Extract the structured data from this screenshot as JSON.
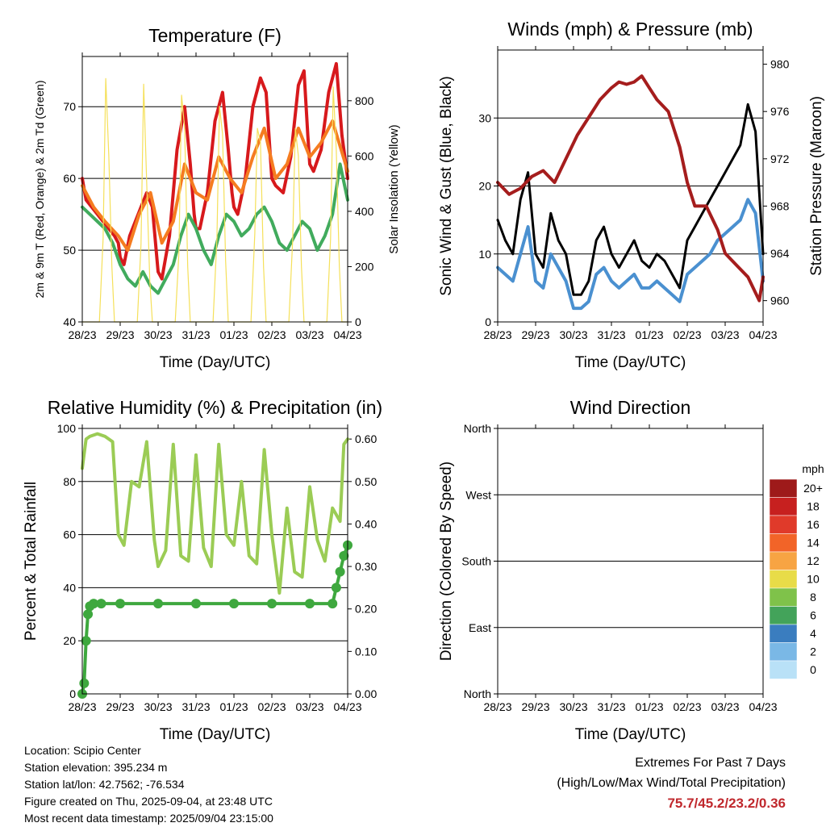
{
  "chart_data": [
    {
      "type": "line",
      "title": "Temperature (F)",
      "xlabel": "Time (Day/UTC)",
      "ylabel": "2m & 9m T (Red, Orange) & 2m Td (Green)",
      "ylabel_right": "Solar Insolation (Yellow)",
      "x_ticks": [
        "28/23",
        "29/23",
        "30/23",
        "31/23",
        "01/23",
        "02/23",
        "03/23",
        "04/23"
      ],
      "ylim": [
        40,
        77
      ],
      "y_ticks": [
        40,
        50,
        60,
        70
      ],
      "ylim_right": [
        0,
        960
      ],
      "y_ticks_right": [
        0,
        200,
        400,
        600,
        800
      ],
      "grid": true,
      "series": [
        {
          "color": "#d7191c",
          "x": [
            0,
            0.1,
            0.25,
            0.4,
            0.55,
            0.7,
            0.85,
            0.95,
            1.0,
            1.1,
            1.25,
            1.4,
            1.55,
            1.7,
            1.85,
            1.95,
            2.0,
            2.1,
            2.3,
            2.5,
            2.7,
            2.85,
            2.95,
            3.0,
            3.1,
            3.3,
            3.5,
            3.7,
            3.85,
            3.95,
            4.0,
            4.1,
            4.3,
            4.5,
            4.7,
            4.85,
            4.95,
            5.0,
            5.1,
            5.3,
            5.5,
            5.7,
            5.85,
            5.95,
            6.0,
            6.1,
            6.3,
            6.5,
            6.7,
            6.85,
            6.95,
            7.0
          ],
          "y": [
            60,
            57,
            56,
            55,
            54,
            53,
            52,
            51,
            49,
            48,
            52,
            54,
            56,
            58,
            56,
            50,
            47,
            46,
            52,
            64,
            70,
            62,
            55,
            53,
            53,
            58,
            68,
            72,
            64,
            58,
            56,
            55,
            60,
            70,
            74,
            72,
            64,
            60,
            59,
            58,
            63,
            73,
            75,
            66,
            62,
            61,
            64,
            72,
            76,
            66,
            62,
            60
          ]
        },
        {
          "color": "#f57c20",
          "x": [
            0,
            0.3,
            0.6,
            0.95,
            1.2,
            1.5,
            1.8,
            2.1,
            2.4,
            2.7,
            3.0,
            3.3,
            3.6,
            3.9,
            4.2,
            4.5,
            4.8,
            5.1,
            5.4,
            5.7,
            6.0,
            6.3,
            6.6,
            7.0
          ],
          "y": [
            59,
            56,
            54,
            52,
            50,
            55,
            58,
            51,
            54,
            62,
            58,
            57,
            63,
            60,
            58,
            63,
            67,
            60,
            62,
            67,
            63,
            65,
            68,
            61
          ]
        },
        {
          "color": "#41ab5d",
          "x": [
            0,
            0.2,
            0.4,
            0.6,
            0.8,
            1.0,
            1.2,
            1.4,
            1.6,
            1.8,
            2.0,
            2.2,
            2.4,
            2.6,
            2.8,
            3.0,
            3.2,
            3.4,
            3.6,
            3.8,
            4.0,
            4.2,
            4.4,
            4.6,
            4.8,
            5.0,
            5.2,
            5.4,
            5.6,
            5.8,
            6.0,
            6.2,
            6.4,
            6.6,
            6.8,
            7.0
          ],
          "y": [
            56,
            55,
            54,
            53,
            51,
            48,
            46,
            45,
            47,
            45,
            44,
            46,
            48,
            52,
            55,
            53,
            50,
            48,
            52,
            55,
            54,
            52,
            53,
            55,
            56,
            54,
            51,
            50,
            52,
            54,
            53,
            50,
            52,
            55,
            62,
            57
          ]
        },
        {
          "color": "#f5e05a",
          "x": [
            0,
            0.45,
            0.55,
            0.62,
            0.7,
            0.78,
            0.85,
            1.45,
            1.55,
            1.62,
            1.7,
            1.78,
            1.85,
            2.45,
            2.55,
            2.62,
            2.7,
            2.78,
            2.85,
            3.45,
            3.55,
            3.62,
            3.7,
            3.78,
            3.85,
            4.45,
            4.55,
            4.62,
            4.7,
            4.78,
            4.85,
            5.45,
            5.55,
            5.62,
            5.7,
            5.78,
            5.85,
            6.45,
            6.55,
            6.62,
            6.7,
            6.78,
            6.85,
            7.0
          ],
          "y": [
            0,
            0,
            300,
            880,
            600,
            200,
            0,
            0,
            280,
            860,
            500,
            150,
            0,
            0,
            250,
            820,
            700,
            200,
            0,
            0,
            300,
            780,
            680,
            220,
            0,
            0,
            320,
            700,
            650,
            200,
            0,
            0,
            300,
            700,
            600,
            200,
            0,
            0,
            300,
            850,
            620,
            200,
            0,
            0
          ]
        }
      ]
    },
    {
      "type": "line",
      "title": "Winds (mph) & Pressure (mb)",
      "xlabel": "Time (Day/UTC)",
      "ylabel": "Sonic Wind & Gust (Blue, Black)",
      "ylabel_right": "Station Pressure (Maroon)",
      "x_ticks": [
        "28/23",
        "29/23",
        "30/23",
        "31/23",
        "01/23",
        "02/23",
        "03/23",
        "04/23"
      ],
      "ylim": [
        0,
        40
      ],
      "y_ticks": [
        0,
        10,
        20,
        30
      ],
      "ylim_right": [
        958.2,
        981.2
      ],
      "y_ticks_right": [
        960,
        964,
        968,
        972,
        976,
        980
      ],
      "grid": true,
      "series": [
        {
          "color": "#000000",
          "x": [
            0,
            0.2,
            0.4,
            0.6,
            0.8,
            1.0,
            1.2,
            1.4,
            1.6,
            1.8,
            2.0,
            2.2,
            2.4,
            2.6,
            2.8,
            3.0,
            3.2,
            3.4,
            3.6,
            3.8,
            4.0,
            4.2,
            4.4,
            4.6,
            4.8,
            5.0,
            5.2,
            5.4,
            5.6,
            5.8,
            6.0,
            6.2,
            6.4,
            6.6,
            6.8,
            7.0
          ],
          "y": [
            15,
            12,
            10,
            18,
            22,
            10,
            8,
            16,
            12,
            10,
            4,
            4,
            6,
            12,
            14,
            10,
            8,
            10,
            12,
            9,
            8,
            10,
            9,
            7,
            5,
            12,
            14,
            16,
            18,
            20,
            22,
            24,
            26,
            32,
            28,
            10
          ]
        },
        {
          "color": "#4a90d0",
          "x": [
            0,
            0.2,
            0.4,
            0.6,
            0.8,
            1.0,
            1.2,
            1.4,
            1.6,
            1.8,
            2.0,
            2.2,
            2.4,
            2.6,
            2.8,
            3.0,
            3.2,
            3.4,
            3.6,
            3.8,
            4.0,
            4.2,
            4.4,
            4.6,
            4.8,
            5.0,
            5.2,
            5.4,
            5.6,
            5.8,
            6.0,
            6.2,
            6.4,
            6.6,
            6.8,
            7.0
          ],
          "y": [
            8,
            7,
            6,
            10,
            14,
            6,
            5,
            10,
            8,
            6,
            2,
            2,
            3,
            7,
            8,
            6,
            5,
            6,
            7,
            5,
            5,
            6,
            5,
            4,
            3,
            7,
            8,
            9,
            10,
            12,
            13,
            14,
            15,
            18,
            16,
            6
          ]
        },
        {
          "color": "#a51d1d",
          "x": [
            0,
            0.3,
            0.6,
            0.9,
            1.2,
            1.5,
            1.8,
            2.1,
            2.4,
            2.7,
            3.0,
            3.2,
            3.4,
            3.6,
            3.8,
            4.0,
            4.2,
            4.5,
            4.8,
            5.0,
            5.2,
            5.5,
            5.8,
            6.0,
            6.3,
            6.6,
            6.9,
            7.0
          ],
          "y": [
            970,
            969,
            969.5,
            970.5,
            971,
            970,
            972,
            974,
            975.5,
            977,
            978,
            978.5,
            978.3,
            978.5,
            979,
            978,
            977,
            976,
            973,
            970,
            968,
            968,
            966,
            964,
            963,
            962,
            960,
            962
          ]
        }
      ]
    },
    {
      "type": "line",
      "title": "Relative Humidity (%) & Precipitation (in)",
      "xlabel": "Time (Day/UTC)",
      "ylabel": "Percent & Total Rainfall",
      "x_ticks": [
        "28/23",
        "29/23",
        "30/23",
        "31/23",
        "01/23",
        "02/23",
        "03/23",
        "04/23"
      ],
      "ylim": [
        0,
        100
      ],
      "y_ticks": [
        0,
        20,
        40,
        60,
        80,
        100
      ],
      "ylim_right": [
        0,
        0.625
      ],
      "y_ticks_right": [
        "0.00",
        "0.10",
        "0.20",
        "0.30",
        "0.40",
        "0.50",
        "0.60"
      ],
      "grid": true,
      "series": [
        {
          "color": "#9bcc55",
          "x": [
            0,
            0.1,
            0.2,
            0.4,
            0.6,
            0.8,
            0.95,
            1.1,
            1.3,
            1.5,
            1.7,
            1.9,
            2.0,
            2.2,
            2.4,
            2.6,
            2.8,
            3.0,
            3.2,
            3.4,
            3.6,
            3.8,
            4.0,
            4.2,
            4.4,
            4.6,
            4.8,
            5.0,
            5.2,
            5.4,
            5.6,
            5.8,
            6.0,
            6.2,
            6.4,
            6.6,
            6.8,
            6.9,
            7.0
          ],
          "y": [
            85,
            96,
            97,
            98,
            97,
            95,
            60,
            56,
            80,
            78,
            95,
            58,
            48,
            54,
            94,
            52,
            50,
            90,
            55,
            48,
            94,
            60,
            56,
            80,
            52,
            49,
            92,
            60,
            38,
            70,
            46,
            44,
            78,
            58,
            50,
            70,
            65,
            94,
            96
          ]
        },
        {
          "color": "#3ea83e",
          "x": [
            0,
            0.05,
            0.1,
            0.15,
            0.2,
            0.3,
            0.5,
            1.0,
            2.0,
            3.0,
            4.0,
            5.0,
            6.0,
            6.6,
            6.7,
            6.8,
            6.9,
            7.0
          ],
          "y": [
            0,
            4,
            20,
            30,
            33,
            34,
            34,
            34,
            34,
            34,
            34,
            34,
            34,
            34,
            40,
            46,
            52,
            56
          ]
        }
      ]
    },
    {
      "type": "scatter",
      "title": "Wind Direction",
      "xlabel": "Time (Day/UTC)",
      "ylabel": "Direction (Colored By Speed)",
      "x_ticks": [
        "28/23",
        "29/23",
        "30/23",
        "31/23",
        "01/23",
        "02/23",
        "03/23",
        "04/23"
      ],
      "y_ticks": [
        "North",
        "East",
        "South",
        "West",
        "North"
      ],
      "grid": true,
      "legend_title": "mph",
      "legend_labels": [
        "20+",
        "18",
        "16",
        "14",
        "12",
        "10",
        "8",
        "6",
        "4",
        "2",
        "0"
      ],
      "legend_colors": [
        "#9e1a1a",
        "#c7201f",
        "#e03a2a",
        "#f26428",
        "#f7a443",
        "#e8dc48",
        "#7fc24a",
        "#43a35a",
        "#3a7dbf",
        "#7ab8e6",
        "#b9e1f7"
      ],
      "points": []
    }
  ],
  "footer": {
    "location": "Location: Scipio Center",
    "elevation": "Station elevation: 395.234 m",
    "latlon": "Station lat/lon: 42.7562; -76.534",
    "created": "Figure created on Thu, 2025-09-04, at 23:48 UTC",
    "recent": "Most recent data timestamp: 2025/09/04 23:15:00"
  },
  "extremes": {
    "line1": "Extremes For Past 7 Days",
    "line2": "(High/Low/Max Wind/Total Precipitation)",
    "values": "75.7/45.2/23.2/0.36"
  }
}
